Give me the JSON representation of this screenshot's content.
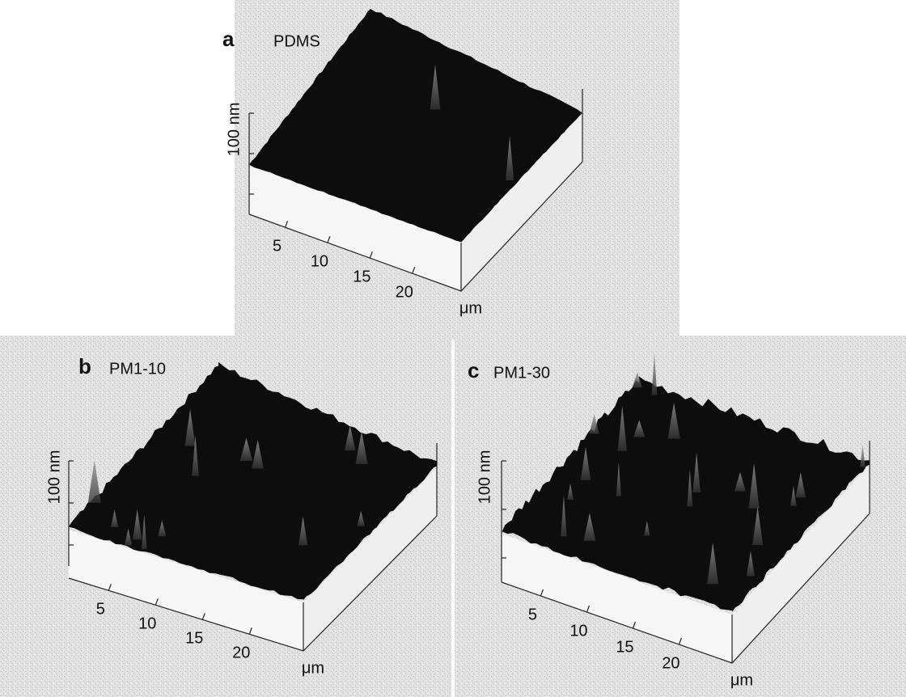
{
  "panels": [
    {
      "letter": "a",
      "title": "PDMS",
      "z_label": "100 nm",
      "x_ticks": [
        "5",
        "10",
        "15",
        "20"
      ],
      "x_unit": "μm"
    },
    {
      "letter": "b",
      "title": "PM1-10",
      "z_label": "100 nm",
      "x_ticks": [
        "5",
        "10",
        "15",
        "20"
      ],
      "x_unit": "μm"
    },
    {
      "letter": "c",
      "title": "PM1-30",
      "z_label": "100 nm",
      "x_ticks": [
        "5",
        "10",
        "15",
        "20"
      ],
      "x_unit": "μm"
    }
  ]
}
